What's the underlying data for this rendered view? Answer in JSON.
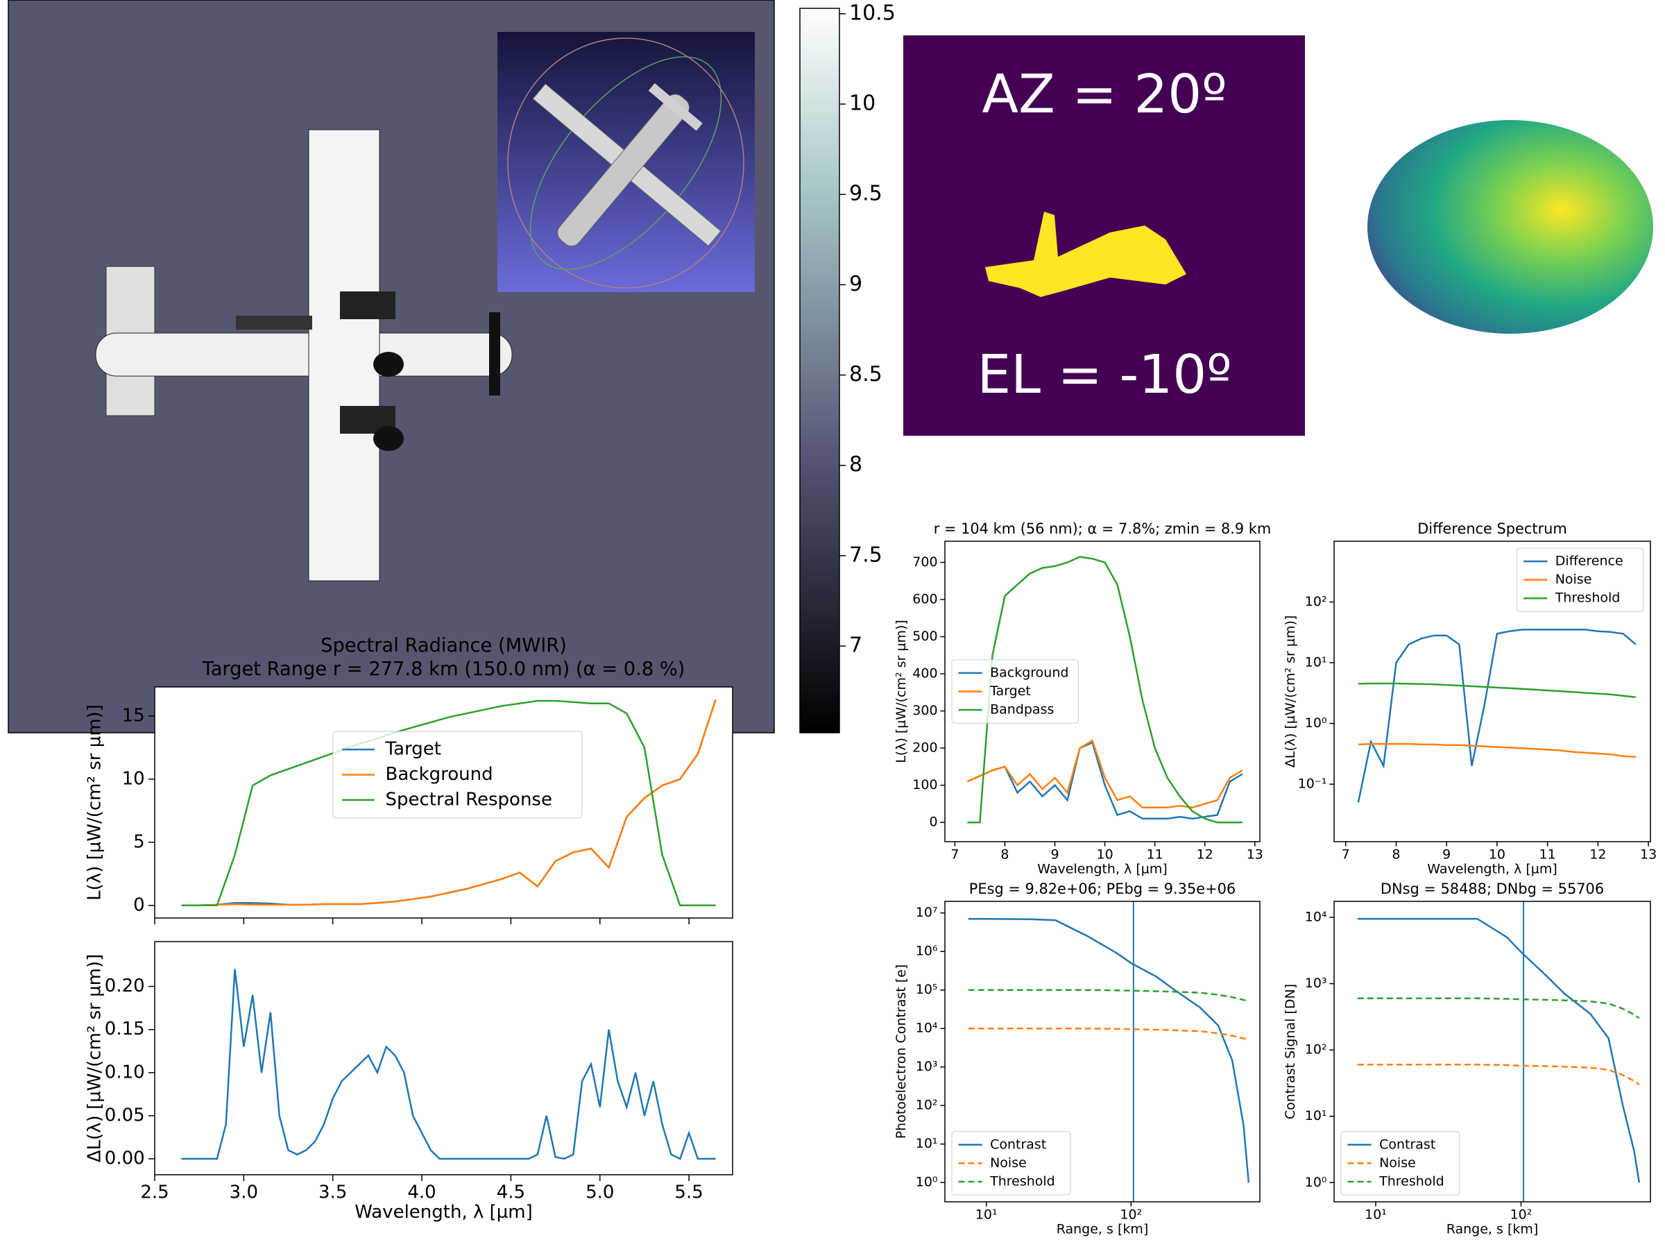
{
  "view": {
    "az": "AZ = 20º",
    "el": "EL = -10º"
  },
  "chart_data": [
    {
      "type": "line",
      "title": "Spectral Radiance (MWIR)",
      "subtitle": "Target Range r = 277.8 km (150.0 nm) (α = 0.8 %)",
      "ylabel": "L(λ) [µW/(cm² sr µm)]",
      "x": [
        2.65,
        2.75,
        2.85,
        2.95,
        3.05,
        3.15,
        3.25,
        3.35,
        3.45,
        3.55,
        3.65,
        3.75,
        3.85,
        3.95,
        4.05,
        4.15,
        4.25,
        4.35,
        4.45,
        4.55,
        4.65,
        4.75,
        4.85,
        4.95,
        5.05,
        5.15,
        5.25,
        5.35,
        5.45,
        5.55,
        5.65
      ],
      "series": [
        {
          "name": "Target",
          "color": "#1f77b4",
          "values": [
            0,
            0,
            0.05,
            0.2,
            0.2,
            0.15,
            0.05,
            0.05,
            0.1,
            0.1,
            0.1,
            0.2,
            0.3,
            0.5,
            0.7,
            1.0,
            1.3,
            1.7,
            2.1,
            2.6,
            1.5,
            3.5,
            4.2,
            4.5,
            3.0,
            7.0,
            8.5,
            9.5,
            10.0,
            12.0,
            16.3
          ]
        },
        {
          "name": "Background",
          "color": "#ff7f0e",
          "values": [
            0,
            0,
            0.05,
            0.1,
            0.05,
            0.05,
            0.05,
            0.05,
            0.1,
            0.1,
            0.1,
            0.2,
            0.3,
            0.5,
            0.7,
            1.0,
            1.3,
            1.7,
            2.1,
            2.6,
            1.5,
            3.5,
            4.2,
            4.5,
            3.0,
            7.0,
            8.5,
            9.5,
            10.0,
            12.0,
            16.3
          ]
        },
        {
          "name": "Spectral Response",
          "color": "#2ca02c",
          "values": [
            0,
            0,
            0,
            4,
            9.5,
            10.3,
            10.8,
            11.3,
            11.8,
            12.3,
            12.8,
            13.2,
            13.7,
            14.1,
            14.5,
            14.9,
            15.2,
            15.5,
            15.8,
            16.0,
            16.2,
            16.2,
            16.1,
            16.0,
            16.0,
            15.2,
            12.5,
            4,
            0,
            0,
            0
          ]
        }
      ],
      "xlim": [
        2.5,
        5.745
      ],
      "xticks": [
        2.5,
        {
          "value": 3,
          "label": "3.0"
        },
        3.5,
        {
          "value": 4,
          "label": "4.0"
        },
        4.5,
        {
          "value": 5,
          "label": "5.0"
        },
        5.5
      ],
      "xtick_labels": false,
      "ylim": [
        -1.0,
        17.3
      ],
      "yticks": [
        0,
        5,
        10,
        15
      ],
      "legend": "center"
    },
    {
      "type": "line",
      "xlabel": "Wavelength, λ [µm]",
      "ylabel": "ΔL(λ) [µW/(cm² sr µm)]",
      "x": [
        2.65,
        2.7,
        2.75,
        2.8,
        2.85,
        2.9,
        2.95,
        3.0,
        3.05,
        3.1,
        3.15,
        3.2,
        3.25,
        3.3,
        3.35,
        3.4,
        3.45,
        3.5,
        3.55,
        3.6,
        3.65,
        3.7,
        3.75,
        3.8,
        3.85,
        3.9,
        3.95,
        4.0,
        4.05,
        4.1,
        4.15,
        4.2,
        4.25,
        4.3,
        4.35,
        4.4,
        4.45,
        4.5,
        4.55,
        4.6,
        4.65,
        4.7,
        4.75,
        4.8,
        4.85,
        4.9,
        4.95,
        5.0,
        5.05,
        5.1,
        5.15,
        5.2,
        5.25,
        5.3,
        5.35,
        5.4,
        5.45,
        5.5,
        5.55,
        5.6,
        5.65
      ],
      "series": [
        {
          "color": "#1f77b4",
          "values": [
            0,
            0,
            0,
            0,
            0,
            0.04,
            0.22,
            0.13,
            0.19,
            0.1,
            0.17,
            0.05,
            0.01,
            0.005,
            0.01,
            0.02,
            0.04,
            0.07,
            0.09,
            0.1,
            0.11,
            0.12,
            0.1,
            0.13,
            0.12,
            0.1,
            0.05,
            0.03,
            0.01,
            0,
            0,
            0,
            0,
            0,
            0,
            0,
            0,
            0,
            0,
            0,
            0.005,
            0.05,
            0.002,
            0,
            0.005,
            0.09,
            0.11,
            0.06,
            0.15,
            0.09,
            0.06,
            0.1,
            0.05,
            0.09,
            0.04,
            0.005,
            0,
            0.03,
            0,
            0,
            0
          ]
        }
      ],
      "xlim": [
        2.5,
        5.745
      ],
      "xticks": [
        2.5,
        {
          "value": 3,
          "label": "3.0"
        },
        3.5,
        {
          "value": 4,
          "label": "4.0"
        },
        4.5,
        {
          "value": 5,
          "label": "5.0"
        },
        5.5
      ],
      "ylim": [
        -0.0185,
        0.252
      ],
      "yticks": [
        {
          "value": 0,
          "label": "0.00"
        },
        0.05,
        {
          "value": 0.1,
          "label": "0.10"
        },
        0.15,
        {
          "value": 0.2,
          "label": "0.20"
        }
      ]
    },
    {
      "type": "line",
      "title": "r = 104 km (56 nm); α = 7.8%; zmin = 8.9 km",
      "xlabel": "Wavelength, λ [µm]",
      "ylabel": "L(λ) [µW/(cm² sr µm)]",
      "x": [
        7.25,
        7.5,
        7.75,
        8.0,
        8.25,
        8.5,
        8.75,
        9.0,
        9.25,
        9.5,
        9.75,
        10.0,
        10.25,
        10.5,
        10.75,
        11.0,
        11.25,
        11.5,
        11.75,
        12.0,
        12.25,
        12.5,
        12.75
      ],
      "series": [
        {
          "name": "Background",
          "color": "#1f77b4",
          "values": [
            110,
            125,
            140,
            150,
            80,
            110,
            70,
            100,
            60,
            200,
            215,
            100,
            20,
            30,
            10,
            10,
            10,
            15,
            10,
            15,
            20,
            110,
            130
          ]
        },
        {
          "name": "Target",
          "color": "#ff7f0e",
          "values": [
            110,
            125,
            140,
            150,
            100,
            130,
            90,
            120,
            80,
            200,
            220,
            120,
            60,
            70,
            40,
            40,
            40,
            45,
            40,
            50,
            60,
            120,
            140
          ]
        },
        {
          "name": "Bandpass",
          "color": "#2ca02c",
          "values": [
            0,
            0,
            450,
            610,
            640,
            670,
            685,
            690,
            700,
            715,
            710,
            700,
            640,
            500,
            330,
            200,
            120,
            70,
            30,
            10,
            0,
            0,
            0
          ]
        }
      ],
      "xlim": [
        6.8,
        13.1
      ],
      "xticks": [
        7,
        8,
        9,
        10,
        11,
        12,
        13
      ],
      "ylim": [
        -52,
        757
      ],
      "yticks": [
        0,
        100,
        200,
        300,
        400,
        500,
        600,
        700
      ],
      "legend": "center left"
    },
    {
      "type": "line",
      "title": "Difference Spectrum",
      "xlabel": "Wavelength, λ [µm]",
      "ylabel": "ΔL(λ) [µW/(cm² sr µm)]",
      "yscale": "log",
      "x": [
        7.25,
        7.5,
        7.75,
        8.0,
        8.25,
        8.5,
        8.75,
        9.0,
        9.25,
        9.5,
        9.75,
        10.0,
        10.25,
        10.5,
        10.75,
        11.0,
        11.25,
        11.5,
        11.75,
        12.0,
        12.25,
        12.5,
        12.75
      ],
      "series": [
        {
          "name": "Difference",
          "color": "#1f77b4",
          "values": [
            0.05,
            0.5,
            0.2,
            10,
            20,
            25,
            28,
            28,
            20,
            0.2,
            2,
            30,
            33,
            35,
            35,
            35,
            35,
            35,
            35,
            33,
            32,
            30,
            20
          ]
        },
        {
          "name": "Noise",
          "color": "#ff7f0e",
          "values": [
            0.45,
            0.46,
            0.46,
            0.46,
            0.46,
            0.45,
            0.45,
            0.44,
            0.44,
            0.43,
            0.42,
            0.41,
            0.4,
            0.39,
            0.38,
            0.37,
            0.36,
            0.34,
            0.33,
            0.32,
            0.31,
            0.29,
            0.28
          ]
        },
        {
          "name": "Threshold",
          "color": "#2ca02c",
          "values": [
            4.5,
            4.55,
            4.55,
            4.55,
            4.5,
            4.45,
            4.4,
            4.3,
            4.2,
            4.1,
            4.0,
            3.9,
            3.8,
            3.7,
            3.6,
            3.5,
            3.4,
            3.3,
            3.2,
            3.1,
            3.0,
            2.85,
            2.7
          ]
        }
      ],
      "xlim": [
        6.77,
        13.04
      ],
      "xticks": [
        7,
        8,
        9,
        10,
        11,
        12,
        13
      ],
      "ylim": [
        0.0113,
        1000
      ],
      "yticks": [
        {
          "value": 0.1,
          "label": "10⁻¹"
        },
        {
          "value": 1,
          "label": "10⁰"
        },
        {
          "value": 10,
          "label": "10¹"
        },
        {
          "value": 100,
          "label": "10²"
        }
      ],
      "legend": "upper right"
    },
    {
      "type": "line",
      "title": "PEsg = 9.82e+06; PEbg = 9.35e+06",
      "xlabel": "Range, s [km]",
      "ylabel": "Photoelectron Contrast [e]",
      "xscale": "log",
      "yscale": "log",
      "vline": 104,
      "x": [
        7.5,
        10,
        20,
        30,
        50,
        80,
        100,
        150,
        200,
        300,
        400,
        500,
        600,
        650
      ],
      "series": [
        {
          "name": "Contrast",
          "color": "#1f77b4",
          "linestyle": "solid",
          "values": [
            7000000,
            7000000,
            6900000,
            6500000,
            2500000,
            900000,
            500000,
            220000,
            100000,
            35000,
            12000,
            1500,
            30,
            1
          ]
        },
        {
          "name": "Noise",
          "color": "#ff7f0e",
          "linestyle": "dashed",
          "values": [
            10000,
            10000,
            10000,
            10000,
            10000,
            9800,
            9600,
            9300,
            9000,
            8500,
            7500,
            6500,
            5500,
            5000
          ]
        },
        {
          "name": "Threshold",
          "color": "#2ca02c",
          "linestyle": "dashed",
          "values": [
            100000,
            100000,
            100000,
            100000,
            100000,
            98000,
            96000,
            93000,
            90000,
            85000,
            75000,
            65000,
            55000,
            50000
          ]
        }
      ],
      "xlim": [
        5.17,
        777
      ],
      "xticks": [
        {
          "value": 10,
          "label": "10¹"
        },
        {
          "value": 100,
          "label": "10²"
        }
      ],
      "ylim": [
        0.316,
        20000000
      ],
      "yticks": [
        {
          "value": 1,
          "label": "10⁰"
        },
        {
          "value": 10,
          "label": "10¹"
        },
        {
          "value": 100,
          "label": "10²"
        },
        {
          "value": 1000,
          "label": "10³"
        },
        {
          "value": 10000,
          "label": "10⁴"
        },
        {
          "value": 100000,
          "label": "10⁵"
        },
        {
          "value": 1000000,
          "label": "10⁶"
        },
        {
          "value": 10000000,
          "label": "10⁷"
        }
      ],
      "legend": "lower left"
    },
    {
      "type": "line",
      "title": "DNsg = 58488; DNbg = 55706",
      "xlabel": "Range, s [km]",
      "ylabel": "Contrast Signal [DN]",
      "xscale": "log",
      "yscale": "log",
      "vline": 104,
      "x": [
        7.5,
        10,
        20,
        30,
        50,
        80,
        100,
        150,
        200,
        300,
        400,
        500,
        600,
        650
      ],
      "series": [
        {
          "name": "Contrast",
          "color": "#1f77b4",
          "linestyle": "solid",
          "values": [
            9500,
            9500,
            9500,
            9500,
            9500,
            5000,
            3000,
            1300,
            700,
            350,
            150,
            15,
            3,
            1
          ]
        },
        {
          "name": "Noise",
          "color": "#ff7f0e",
          "linestyle": "dashed",
          "values": [
            60,
            60,
            60,
            60,
            60,
            59,
            58,
            57,
            56,
            54,
            50,
            42,
            34,
            30
          ]
        },
        {
          "name": "Threshold",
          "color": "#2ca02c",
          "linestyle": "dashed",
          "values": [
            600,
            600,
            600,
            600,
            600,
            590,
            580,
            570,
            560,
            540,
            500,
            420,
            340,
            300
          ]
        }
      ],
      "xlim": [
        5.17,
        777
      ],
      "xticks": [
        {
          "value": 10,
          "label": "10¹"
        },
        {
          "value": 100,
          "label": "10²"
        }
      ],
      "ylim": [
        0.513,
        17400
      ],
      "yticks": [
        {
          "value": 1,
          "label": "10⁰"
        },
        {
          "value": 10,
          "label": "10¹"
        },
        {
          "value": 100,
          "label": "10²"
        },
        {
          "value": 1000,
          "label": "10³"
        },
        {
          "value": 10000,
          "label": "10⁴"
        }
      ],
      "legend": "lower left"
    },
    {
      "type": "colorbar",
      "ylim": [
        6.52,
        10.53
      ],
      "yticks": [
        7,
        7.5,
        8,
        8.5,
        9,
        9.5,
        10,
        10.5
      ]
    }
  ]
}
